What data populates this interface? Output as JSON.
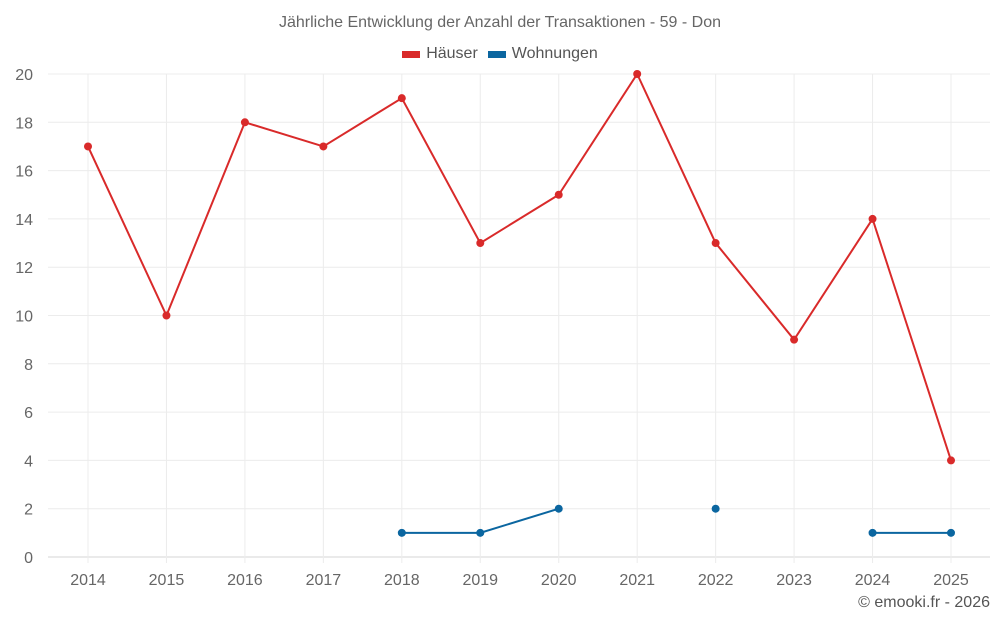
{
  "chart": {
    "title": "Jährliche Entwicklung der Anzahl der Transaktionen - 59 - Don",
    "credit": "© emooki.fr - 2026",
    "legend": [
      {
        "label": "Häuser",
        "color": "#d92a2a"
      },
      {
        "label": "Wohnungen",
        "color": "#0b66a0"
      }
    ]
  },
  "chart_data": {
    "type": "line",
    "title": "Jährliche Entwicklung der Anzahl der Transaktionen - 59 - Don",
    "xlabel": "",
    "ylabel": "",
    "categories": [
      "2014",
      "2015",
      "2016",
      "2017",
      "2018",
      "2019",
      "2020",
      "2021",
      "2022",
      "2023",
      "2024",
      "2025"
    ],
    "yticks": [
      0,
      2,
      4,
      6,
      8,
      10,
      12,
      14,
      16,
      18,
      20
    ],
    "ylim": [
      0,
      20
    ],
    "grid": true,
    "legend_position": "top",
    "series": [
      {
        "name": "Häuser",
        "color": "#d92a2a",
        "values": [
          17,
          10,
          18,
          17,
          19,
          13,
          15,
          20,
          13,
          9,
          14,
          4
        ]
      },
      {
        "name": "Wohnungen",
        "color": "#0b66a0",
        "values": [
          null,
          null,
          null,
          null,
          1,
          1,
          2,
          null,
          2,
          null,
          1,
          1
        ]
      }
    ]
  }
}
